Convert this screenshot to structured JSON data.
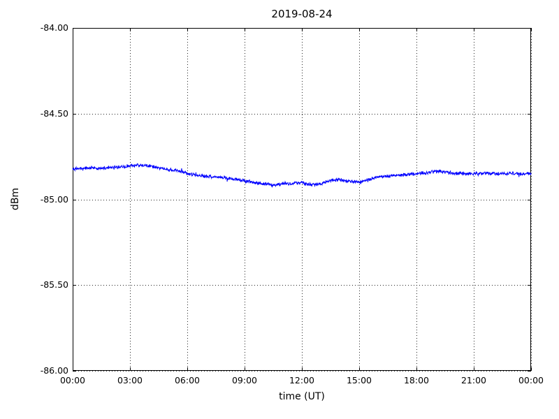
{
  "page": {
    "background": "#ffffff"
  },
  "chart_data": {
    "type": "line",
    "title": "2019-08-24",
    "xlabel": "time (UT)",
    "ylabel": "dBm",
    "legend": "none",
    "grid": "dotted",
    "line_color": "#0000ff",
    "axis_color": "#000000",
    "xlim_hours": [
      0,
      24
    ],
    "ylim": [
      -86.0,
      -84.0
    ],
    "x_tick_labels": [
      "00:00",
      "03:00",
      "06:00",
      "09:00",
      "12:00",
      "15:00",
      "18:00",
      "21:00",
      "00:00"
    ],
    "x_tick_hours": [
      0,
      3,
      6,
      9,
      12,
      15,
      18,
      21,
      24
    ],
    "y_tick_labels": [
      "-84.00",
      "-84.50",
      "-85.00",
      "-85.50",
      "-86.00"
    ],
    "y_tick_values": [
      -84.0,
      -84.5,
      -85.0,
      -85.5,
      -86.0
    ],
    "noise_amplitude": 0.013,
    "series": [
      {
        "name": "signal-level",
        "x_hours": [
          0,
          0.5,
          1,
          1.5,
          2,
          2.5,
          3,
          3.5,
          4,
          4.5,
          5,
          5.5,
          6,
          6.5,
          7,
          7.5,
          8,
          8.5,
          9,
          9.5,
          10,
          10.5,
          11,
          11.5,
          12,
          12.5,
          13,
          13.5,
          14,
          14.5,
          15,
          15.5,
          16,
          16.5,
          17,
          17.5,
          18,
          18.5,
          19,
          19.5,
          20,
          20.5,
          21,
          21.5,
          22,
          22.5,
          23,
          23.5,
          24
        ],
        "values": [
          -84.82,
          -84.82,
          -84.815,
          -84.818,
          -84.815,
          -84.81,
          -84.805,
          -84.8,
          -84.805,
          -84.815,
          -84.825,
          -84.835,
          -84.85,
          -84.86,
          -84.865,
          -84.87,
          -84.875,
          -84.885,
          -84.89,
          -84.9,
          -84.91,
          -84.915,
          -84.91,
          -84.905,
          -84.905,
          -84.915,
          -84.91,
          -84.89,
          -84.885,
          -84.895,
          -84.9,
          -84.885,
          -84.87,
          -84.865,
          -84.86,
          -84.855,
          -84.85,
          -84.845,
          -84.835,
          -84.84,
          -84.85,
          -84.85,
          -84.85,
          -84.848,
          -84.852,
          -84.85,
          -84.85,
          -84.852,
          -84.85
        ]
      }
    ]
  }
}
